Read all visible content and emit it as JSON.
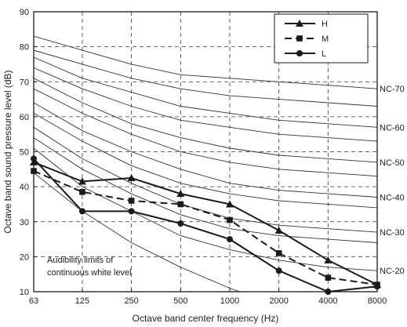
{
  "chart_data": {
    "type": "line",
    "xlabel": "Octave band center frequency (Hz)",
    "ylabel": "Octave band sound pressure level (dB)",
    "x_scale": "log",
    "x": [
      63,
      125,
      250,
      500,
      1000,
      2000,
      4000,
      8000
    ],
    "x_tick_labels": [
      "63",
      "125",
      "250",
      "500",
      "1000",
      "2000",
      "4000",
      "8000"
    ],
    "ylim": [
      10,
      90
    ],
    "y_ticks": [
      10,
      20,
      30,
      40,
      50,
      60,
      70,
      80,
      90
    ],
    "y_tick_labels": [
      "10",
      "20",
      "30",
      "40",
      "50",
      "60",
      "70",
      "80",
      "90"
    ],
    "grid": "dashed",
    "legend_position": "top-right",
    "series": [
      {
        "name": "H",
        "marker": "triangle",
        "dash": false,
        "values": [
          47,
          41.5,
          42.5,
          38,
          35,
          27.5,
          19,
          12
        ]
      },
      {
        "name": "M",
        "marker": "square",
        "dash": true,
        "values": [
          44.5,
          38.5,
          36,
          35,
          30.5,
          21,
          14,
          12
        ]
      },
      {
        "name": "L",
        "marker": "circle",
        "dash": false,
        "values": [
          48,
          33,
          33,
          29.5,
          25,
          16,
          10,
          11.5
        ]
      }
    ],
    "nc_curves": [
      {
        "label": "NC-70",
        "values": [
          83,
          79,
          75,
          72,
          71,
          70,
          69,
          68
        ]
      },
      {
        "label": "",
        "values": [
          79,
          75,
          71,
          68,
          66,
          65,
          64,
          63
        ]
      },
      {
        "label": "NC-60",
        "values": [
          77,
          71,
          67,
          63,
          61,
          59,
          58,
          57
        ]
      },
      {
        "label": "",
        "values": [
          74,
          68,
          63,
          59,
          57,
          55,
          54,
          53
        ]
      },
      {
        "label": "NC-50",
        "values": [
          71,
          64,
          58,
          54,
          51,
          49,
          48,
          47
        ]
      },
      {
        "label": "",
        "values": [
          68,
          61,
          55,
          50,
          47,
          45,
          44,
          43
        ]
      },
      {
        "label": "NC-40",
        "values": [
          64,
          56,
          50,
          45,
          41,
          39,
          38,
          37
        ]
      },
      {
        "label": "",
        "values": [
          61,
          53,
          46,
          41,
          38,
          36,
          35,
          34
        ]
      },
      {
        "label": "NC-30",
        "values": [
          57,
          48,
          41,
          35,
          31,
          29,
          28,
          27
        ]
      },
      {
        "label": "",
        "values": [
          54,
          45,
          38,
          32,
          28,
          26,
          25,
          24
        ]
      },
      {
        "label": "NC-20",
        "values": [
          51,
          40,
          33,
          26,
          22,
          19,
          17,
          16
        ]
      }
    ],
    "audibility_curve": {
      "values": [
        44,
        33,
        24,
        17,
        11,
        6,
        3,
        1
      ]
    },
    "annotation": [
      "Audibility limits of",
      "continuous white level"
    ]
  },
  "colors": {
    "series": "#1a1a1a",
    "curves": "#333333",
    "grid": "#333333",
    "frame": "#1a1a1a"
  }
}
